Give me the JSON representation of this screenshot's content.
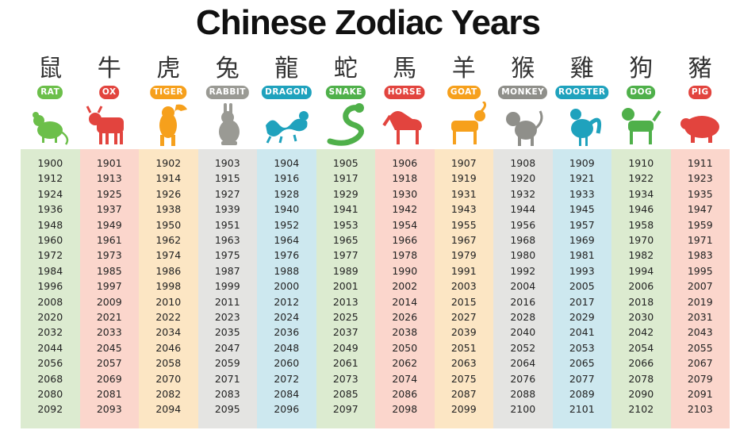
{
  "title": "Chinese Zodiac Years",
  "signs": [
    {
      "hanzi": "鼠",
      "name": "RAT",
      "color": "#6cbf4a",
      "bg": "#dcebd0",
      "years": [
        "1900",
        "1912",
        "1924",
        "1936",
        "1948",
        "1960",
        "1972",
        "1984",
        "1996",
        "2008",
        "2020",
        "2032",
        "2044",
        "2056",
        "2068",
        "2080",
        "2092"
      ]
    },
    {
      "hanzi": "牛",
      "name": "OX",
      "color": "#e2443e",
      "bg": "#fbd6cc",
      "years": [
        "1901",
        "1913",
        "1925",
        "1937",
        "1949",
        "1961",
        "1973",
        "1985",
        "1997",
        "2009",
        "2021",
        "2033",
        "2045",
        "2057",
        "2069",
        "2081",
        "2093"
      ]
    },
    {
      "hanzi": "虎",
      "name": "TIGER",
      "color": "#f6a01c",
      "bg": "#fce6c4",
      "years": [
        "1902",
        "1914",
        "1926",
        "1938",
        "1950",
        "1962",
        "1974",
        "1986",
        "1998",
        "2010",
        "2022",
        "2034",
        "2046",
        "2058",
        "2070",
        "2082",
        "2094"
      ]
    },
    {
      "hanzi": "兔",
      "name": "RABBIT",
      "color": "#9a9a94",
      "bg": "#e4e4e2",
      "years": [
        "1903",
        "1915",
        "1927",
        "1939",
        "1951",
        "1963",
        "1975",
        "1987",
        "1999",
        "2011",
        "2023",
        "2035",
        "2047",
        "2059",
        "2071",
        "2083",
        "2095"
      ]
    },
    {
      "hanzi": "龍",
      "name": "DRAGON",
      "color": "#1fa2bd",
      "bg": "#cde8ef",
      "years": [
        "1904",
        "1916",
        "1928",
        "1940",
        "1952",
        "1964",
        "1976",
        "1988",
        "2000",
        "2012",
        "2024",
        "2036",
        "2048",
        "2060",
        "2072",
        "2084",
        "2096"
      ]
    },
    {
      "hanzi": "蛇",
      "name": "SNAKE",
      "color": "#4fb04a",
      "bg": "#dcebd0",
      "years": [
        "1905",
        "1917",
        "1929",
        "1941",
        "1953",
        "1965",
        "1977",
        "1989",
        "2001",
        "2013",
        "2025",
        "2037",
        "2049",
        "2061",
        "2073",
        "2085",
        "2097"
      ]
    },
    {
      "hanzi": "馬",
      "name": "HORSE",
      "color": "#e2443e",
      "bg": "#fbd6cc",
      "years": [
        "1906",
        "1918",
        "1930",
        "1942",
        "1954",
        "1966",
        "1978",
        "1990",
        "2002",
        "2014",
        "2026",
        "2038",
        "2050",
        "2062",
        "2074",
        "2086",
        "2098"
      ]
    },
    {
      "hanzi": "羊",
      "name": "GOAT",
      "color": "#f6a01c",
      "bg": "#fce6c4",
      "years": [
        "1907",
        "1919",
        "1931",
        "1943",
        "1955",
        "1967",
        "1979",
        "1991",
        "2003",
        "2015",
        "2027",
        "2039",
        "2051",
        "2063",
        "2075",
        "2087",
        "2099"
      ]
    },
    {
      "hanzi": "猴",
      "name": "MONKEY",
      "color": "#8f8f8a",
      "bg": "#e4e4e2",
      "years": [
        "1908",
        "1920",
        "1932",
        "1944",
        "1956",
        "1968",
        "1980",
        "1992",
        "2004",
        "2016",
        "2028",
        "2040",
        "2052",
        "2064",
        "2076",
        "2088",
        "2100"
      ]
    },
    {
      "hanzi": "雞",
      "name": "ROOSTER",
      "color": "#1fa2bd",
      "bg": "#cde8ef",
      "years": [
        "1909",
        "1921",
        "1933",
        "1945",
        "1957",
        "1969",
        "1981",
        "1993",
        "2005",
        "2017",
        "2029",
        "2041",
        "2053",
        "2065",
        "2077",
        "2089",
        "2101"
      ]
    },
    {
      "hanzi": "狗",
      "name": "DOG",
      "color": "#4fb04a",
      "bg": "#dcebd0",
      "years": [
        "1910",
        "1922",
        "1934",
        "1946",
        "1958",
        "1970",
        "1982",
        "1994",
        "2006",
        "2018",
        "2030",
        "2042",
        "2054",
        "2066",
        "2078",
        "2090",
        "2102"
      ]
    },
    {
      "hanzi": "豬",
      "name": "PIG",
      "color": "#e2443e",
      "bg": "#fbd6cc",
      "years": [
        "1911",
        "1923",
        "1935",
        "1947",
        "1959",
        "1971",
        "1983",
        "1995",
        "2007",
        "2019",
        "2031",
        "2043",
        "2055",
        "2067",
        "2079",
        "2091",
        "2103"
      ]
    }
  ]
}
